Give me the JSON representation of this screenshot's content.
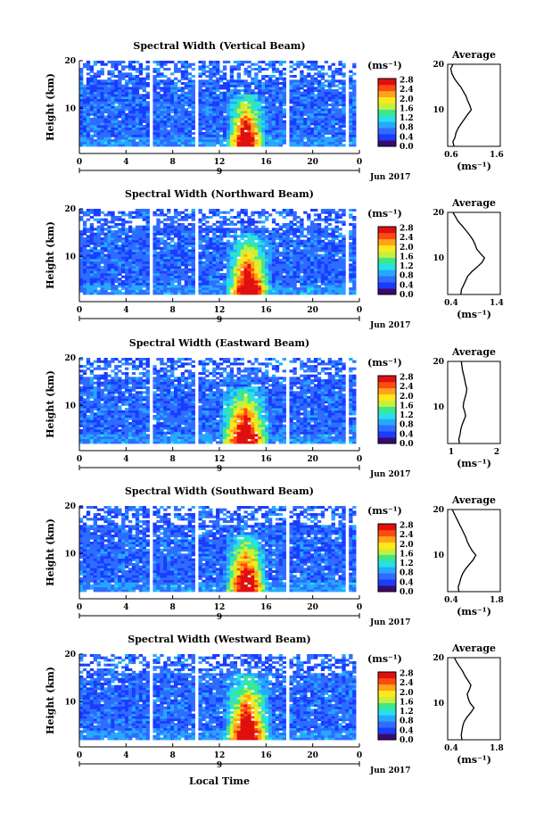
{
  "figure": {
    "x_axis_label": "Local Time",
    "x_ticks": [
      "0",
      "4",
      "8",
      "12",
      "16",
      "20",
      "0"
    ],
    "x_tick_hours": [
      0,
      4,
      8,
      12,
      16,
      20,
      24
    ],
    "date_marker": "9",
    "date_label": "Jun 2017",
    "y_axis_label": "Height (km)",
    "y_ticks": [
      "20",
      "10"
    ],
    "y_tick_values": [
      20,
      10
    ],
    "colorbar_unit": "(ms⁻¹)",
    "colorbar_ticks": [
      "2.8",
      "2.4",
      "2.0",
      "1.6",
      "1.2",
      "0.8",
      "0.4",
      "0.0"
    ],
    "colorbar_tick_values": [
      2.8,
      2.4,
      2.0,
      1.6,
      1.2,
      0.8,
      0.4,
      0.0
    ],
    "avg_title": "Average",
    "avg_xlabel": "(ms⁻¹)",
    "colors": {
      "scale": [
        "#3a0a70",
        "#1a3cff",
        "#2f6cff",
        "#27a8ff",
        "#27e0e8",
        "#3ee88a",
        "#c8f03a",
        "#ffe81a",
        "#ffa31a",
        "#ff4a12",
        "#e01010"
      ]
    }
  },
  "chart_data": [
    {
      "type": "heatmap",
      "title": "Spectral Width (Vertical Beam)",
      "xlabel": "",
      "ylabel": "Height (km)",
      "xlim": [
        0,
        24
      ],
      "ylim": [
        2,
        20
      ],
      "zlim": [
        0,
        2.8
      ],
      "gaps_hours": [
        [
          5.9,
          6.2
        ],
        [
          9.8,
          10.1
        ],
        [
          17.8,
          18.0
        ],
        [
          22.8,
          23.2
        ]
      ],
      "convection": {
        "center_hour": 14.3,
        "width_hours": 1.8,
        "top_km": 13,
        "peak": 2.8
      },
      "avg_profile": {
        "title": "Average",
        "xlabel": "(ms⁻¹)",
        "xticks": [
          "0.6",
          "1.6"
        ],
        "xlim": [
          0.6,
          1.6
        ],
        "x": [
          0.72,
          0.7,
          0.74,
          0.76,
          0.8,
          0.86,
          0.92,
          0.98,
          1.05,
          1.02,
          0.98,
          0.95,
          0.9,
          0.85,
          0.78,
          0.72,
          0.68,
          0.66,
          0.7
        ],
        "y": [
          2,
          3,
          4,
          5,
          6,
          7,
          8,
          9,
          10,
          11,
          12,
          13,
          14,
          15,
          16,
          17,
          18,
          19,
          20
        ]
      }
    },
    {
      "type": "heatmap",
      "title": "Spectral Width (Northward Beam)",
      "xlabel": "",
      "ylabel": "Height (km)",
      "xlim": [
        0,
        24
      ],
      "ylim": [
        2,
        20
      ],
      "zlim": [
        0,
        2.8
      ],
      "gaps_hours": [
        [
          5.9,
          6.2
        ],
        [
          9.8,
          10.1
        ],
        [
          22.8,
          23.2
        ]
      ],
      "convection": {
        "center_hour": 14.5,
        "width_hours": 2.0,
        "top_km": 15,
        "peak": 2.8
      },
      "avg_profile": {
        "title": "Average",
        "xlabel": "(ms⁻¹)",
        "xticks": [
          "0.4",
          "1.4"
        ],
        "xlim": [
          0.4,
          1.4
        ],
        "x": [
          0.65,
          0.66,
          0.7,
          0.74,
          0.78,
          0.86,
          0.96,
          1.05,
          1.1,
          1.02,
          0.95,
          0.92,
          0.88,
          0.82,
          0.75,
          0.68,
          0.6,
          0.55,
          0.5
        ],
        "y": [
          2,
          3,
          4,
          5,
          6,
          7,
          8,
          9,
          10,
          11,
          12,
          13,
          14,
          15,
          16,
          17,
          18,
          19,
          20
        ]
      }
    },
    {
      "type": "heatmap",
      "title": "Spectral Width (Eastward Beam)",
      "xlabel": "",
      "ylabel": "Height (km)",
      "xlim": [
        0,
        24
      ],
      "ylim": [
        2,
        20
      ],
      "zlim": [
        0,
        2.8
      ],
      "gaps_hours": [
        [
          5.9,
          6.2
        ],
        [
          9.8,
          10.1
        ],
        [
          17.8,
          18.0
        ],
        [
          22.8,
          23.2
        ]
      ],
      "convection": {
        "center_hour": 14.2,
        "width_hours": 2.2,
        "top_km": 14,
        "peak": 2.8
      },
      "avg_profile": {
        "title": "Average",
        "xlabel": "(ms⁻¹)",
        "xticks": [
          "1",
          "2"
        ],
        "xlim": [
          0.4,
          2.1
        ],
        "x": [
          0.78,
          0.76,
          0.8,
          0.82,
          0.86,
          0.92,
          0.98,
          0.95,
          0.9,
          0.92,
          0.96,
          1.0,
          1.02,
          0.98,
          0.95,
          0.92,
          0.88,
          0.86,
          0.84
        ],
        "y": [
          2,
          3,
          4,
          5,
          6,
          7,
          8,
          9,
          10,
          11,
          12,
          13,
          14,
          15,
          16,
          17,
          18,
          19,
          20
        ]
      }
    },
    {
      "type": "heatmap",
      "title": "Spectral Width (Southward Beam)",
      "xlabel": "",
      "ylabel": "Height (km)",
      "xlim": [
        0,
        24
      ],
      "ylim": [
        2,
        20
      ],
      "zlim": [
        0,
        2.8
      ],
      "gaps_hours": [
        [
          5.9,
          6.2
        ],
        [
          9.8,
          10.1
        ],
        [
          17.8,
          18.0
        ],
        [
          22.8,
          23.2
        ]
      ],
      "convection": {
        "center_hour": 14.3,
        "width_hours": 1.9,
        "top_km": 14,
        "peak": 2.8
      },
      "avg_profile": {
        "title": "Average",
        "xlabel": "(ms⁻¹)",
        "xticks": [
          "0.4",
          "1.8"
        ],
        "xlim": [
          0.4,
          1.8
        ],
        "x": [
          0.7,
          0.68,
          0.72,
          0.75,
          0.8,
          0.88,
          0.98,
          1.08,
          1.15,
          1.05,
          0.98,
          0.92,
          0.88,
          0.82,
          0.76,
          0.7,
          0.64,
          0.58,
          0.52
        ],
        "y": [
          2,
          3,
          4,
          5,
          6,
          7,
          8,
          9,
          10,
          11,
          12,
          13,
          14,
          15,
          16,
          17,
          18,
          19,
          20
        ]
      }
    },
    {
      "type": "heatmap",
      "title": "Spectral Width (Westward Beam)",
      "xlabel": "",
      "ylabel": "Height (km)",
      "xlim": [
        0,
        24
      ],
      "ylim": [
        2,
        20
      ],
      "zlim": [
        0,
        2.8
      ],
      "gaps_hours": [
        [
          5.9,
          6.2
        ],
        [
          9.8,
          10.1
        ],
        [
          17.8,
          18.0
        ]
      ],
      "convection": {
        "center_hour": 14.4,
        "width_hours": 2.1,
        "top_km": 16,
        "peak": 2.8
      },
      "avg_profile": {
        "title": "Average",
        "xlabel": "(ms⁻¹)",
        "xticks": [
          "0.4",
          "1.8"
        ],
        "xlim": [
          0.4,
          1.8
        ],
        "x": [
          0.78,
          0.76,
          0.78,
          0.8,
          0.84,
          0.92,
          1.02,
          1.1,
          1.0,
          0.95,
          0.92,
          0.98,
          1.02,
          0.94,
          0.86,
          0.8,
          0.72,
          0.64,
          0.58
        ],
        "y": [
          2,
          3,
          4,
          5,
          6,
          7,
          8,
          9,
          10,
          11,
          12,
          13,
          14,
          15,
          16,
          17,
          18,
          19,
          20
        ]
      }
    }
  ]
}
